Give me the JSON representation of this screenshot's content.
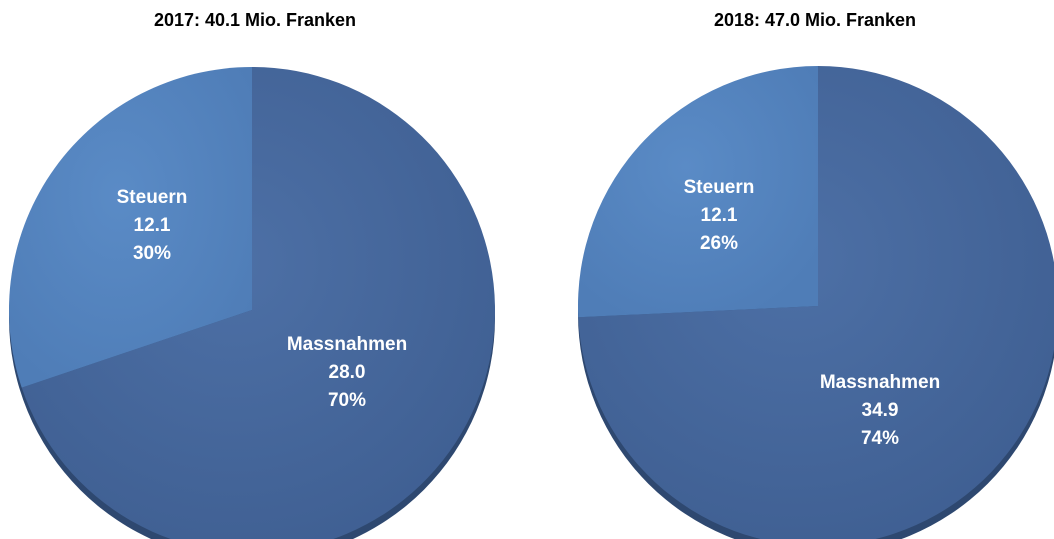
{
  "chart_data": [
    {
      "type": "pie",
      "title": "2017: 40.1 Mio. Franken",
      "slices": [
        {
          "name": "Massnahmen",
          "value": 28.0,
          "value_label": "28.0",
          "percent": 70,
          "percent_label": "70%"
        },
        {
          "name": "Steuern",
          "value": 12.1,
          "value_label": "12.1",
          "percent": 30,
          "percent_label": "30%"
        }
      ]
    },
    {
      "type": "pie",
      "title": "2018: 47.0 Mio. Franken",
      "slices": [
        {
          "name": "Massnahmen",
          "value": 34.9,
          "value_label": "34.9",
          "percent": 74,
          "percent_label": "74%"
        },
        {
          "name": "Steuern",
          "value": 12.1,
          "value_label": "12.1",
          "percent": 26,
          "percent_label": "26%"
        }
      ]
    }
  ],
  "colors": {
    "massnahmen": "#44669a",
    "steuern": "#5584be",
    "shadow": "#2e4870"
  }
}
